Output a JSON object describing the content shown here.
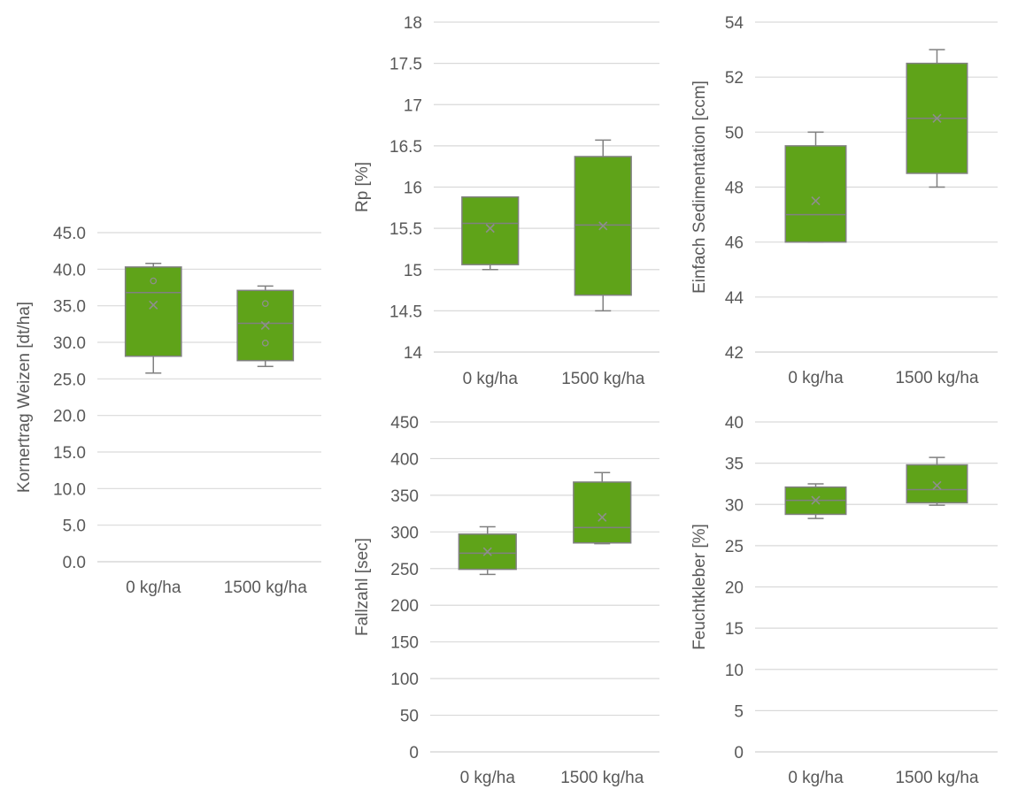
{
  "colors": {
    "box_fill": "#5fa319",
    "box_stroke": "#808080",
    "grid": "#d9d9d9",
    "text": "#595959"
  },
  "chart_data": [
    {
      "id": "kornertrag",
      "type": "boxplot",
      "ylabel": "Kornertrag Weizen [dt/ha]",
      "ylim": [
        0,
        45
      ],
      "yticks": [
        "0.0",
        "5.0",
        "10.0",
        "15.0",
        "20.0",
        "25.0",
        "30.0",
        "35.0",
        "40.0",
        "45.0"
      ],
      "categories": [
        "0 kg/ha",
        "1500 kg/ha"
      ],
      "boxes": [
        {
          "min": 25.8,
          "q1": 28.1,
          "median": 36.8,
          "q3": 40.3,
          "max": 40.8,
          "mean": 35.1,
          "points": [
            38.4
          ]
        },
        {
          "min": 26.7,
          "q1": 27.5,
          "median": 32.6,
          "q3": 37.1,
          "max": 37.7,
          "mean": 32.3,
          "points": [
            35.3,
            29.9
          ]
        }
      ]
    },
    {
      "id": "rp",
      "type": "boxplot",
      "ylabel": "Rp [%]",
      "ylim": [
        14,
        18
      ],
      "yticks": [
        "14",
        "14.5",
        "15",
        "15.5",
        "16",
        "16.5",
        "17",
        "17.5",
        "18"
      ],
      "categories": [
        "0 kg/ha",
        "1500 kg/ha"
      ],
      "boxes": [
        {
          "min": 15.0,
          "q1": 15.06,
          "median": 15.56,
          "q3": 15.88,
          "max": 15.88,
          "mean": 15.5,
          "points": []
        },
        {
          "min": 14.5,
          "q1": 14.69,
          "median": 15.54,
          "q3": 16.37,
          "max": 16.57,
          "mean": 15.53,
          "points": []
        }
      ]
    },
    {
      "id": "sedimentation",
      "type": "boxplot",
      "ylabel": "Einfach Sedimentation [ccm]",
      "ylim": [
        42,
        54
      ],
      "yticks": [
        "42",
        "44",
        "46",
        "48",
        "50",
        "52",
        "54"
      ],
      "categories": [
        "0 kg/ha",
        "1500 kg/ha"
      ],
      "boxes": [
        {
          "min": 46.0,
          "q1": 46.0,
          "median": 47.0,
          "q3": 49.5,
          "max": 50.0,
          "mean": 47.5,
          "points": []
        },
        {
          "min": 48.0,
          "q1": 48.5,
          "median": 50.5,
          "q3": 52.5,
          "max": 53.0,
          "mean": 50.5,
          "points": []
        }
      ]
    },
    {
      "id": "fallzahl",
      "type": "boxplot",
      "ylabel": "Fallzahl [sec]",
      "ylim": [
        0,
        450
      ],
      "yticks": [
        "0",
        "50",
        "100",
        "150",
        "200",
        "250",
        "300",
        "350",
        "400",
        "450"
      ],
      "categories": [
        "0 kg/ha",
        "1500 kg/ha"
      ],
      "boxes": [
        {
          "min": 242,
          "q1": 249,
          "median": 271,
          "q3": 297,
          "max": 307,
          "mean": 273,
          "points": []
        },
        {
          "min": 284,
          "q1": 285,
          "median": 306,
          "q3": 368,
          "max": 381,
          "mean": 320,
          "points": []
        }
      ]
    },
    {
      "id": "feuchtkleber",
      "type": "boxplot",
      "ylabel": "Feuchtkleber [%]",
      "ylim": [
        0,
        40
      ],
      "yticks": [
        "0",
        "5",
        "10",
        "15",
        "20",
        "25",
        "30",
        "35",
        "40"
      ],
      "categories": [
        "0 kg/ha",
        "1500 kg/ha"
      ],
      "boxes": [
        {
          "min": 28.3,
          "q1": 28.8,
          "median": 30.5,
          "q3": 32.1,
          "max": 32.5,
          "mean": 30.5,
          "points": []
        },
        {
          "min": 29.9,
          "q1": 30.2,
          "median": 31.8,
          "q3": 34.8,
          "max": 35.7,
          "mean": 32.3,
          "points": []
        }
      ]
    }
  ]
}
